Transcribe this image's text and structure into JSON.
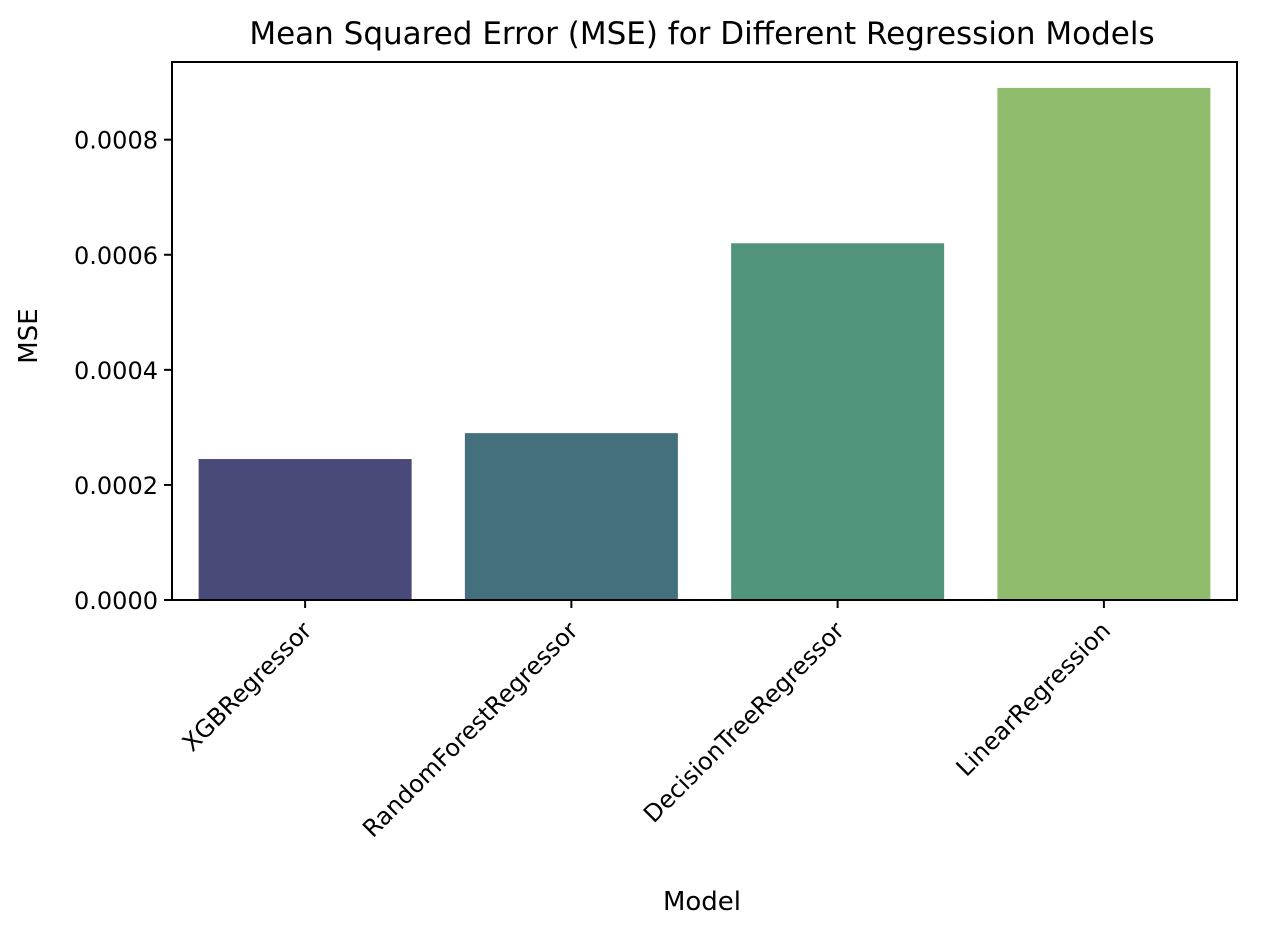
{
  "chart_data": {
    "type": "bar",
    "title": "Mean Squared Error (MSE) for Different Regression Models",
    "xlabel": "Model",
    "ylabel": "MSE",
    "categories": [
      "XGBRegressor",
      "RandomForestRegressor",
      "DecisionTreeRegressor",
      "LinearRegression"
    ],
    "values": [
      0.000245,
      0.00029,
      0.00062,
      0.00089
    ],
    "colors": [
      "#4a4a7a",
      "#44707e",
      "#52937c",
      "#8fbd6d"
    ],
    "ylim": [
      0,
      0.000935
    ],
    "yticks": [
      0,
      0.0002,
      0.0004,
      0.0006,
      0.0008
    ],
    "ytick_labels": [
      "0.0000",
      "0.0002",
      "0.0004",
      "0.0006",
      "0.0008"
    ],
    "grid": false,
    "legend": "none"
  }
}
